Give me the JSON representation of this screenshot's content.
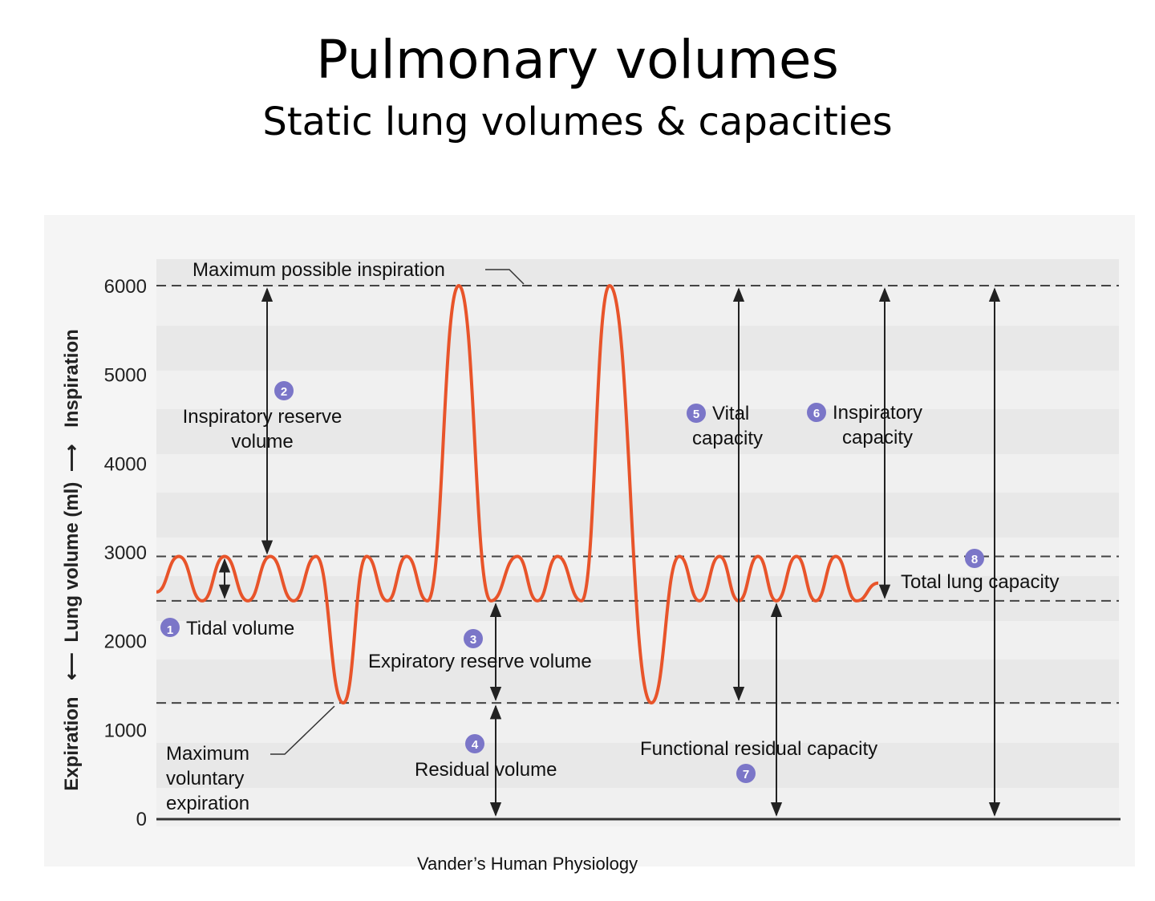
{
  "title": "Pulmonary volumes",
  "subtitle": "Static lung volumes & capacities",
  "source": "Vander’s Human Physiology",
  "accent_color": "#e8542a",
  "marker_color": "#7b76c8",
  "axis": {
    "y_label_parts": [
      "Expiration",
      "Lung volume (ml)",
      "Inspiration"
    ],
    "ticks": [
      "0",
      "1000",
      "2000",
      "3000",
      "4000",
      "5000",
      "6000"
    ]
  },
  "levels": {
    "max_inspiration": 6000,
    "tidal_top": 2950,
    "tidal_bottom": 2450,
    "max_expiration": 1300
  },
  "annotations": {
    "max_inspiration": "Maximum possible inspiration",
    "max_expiration": [
      "Maximum",
      "voluntary",
      "expiration"
    ]
  },
  "volumes": [
    {
      "num": "1",
      "lines": [
        "Tidal volume"
      ]
    },
    {
      "num": "2",
      "lines": [
        "Inspiratory reserve",
        "volume"
      ]
    },
    {
      "num": "3",
      "lines": [
        "Expiratory reserve volume"
      ]
    },
    {
      "num": "4",
      "lines": [
        "Residual volume"
      ]
    },
    {
      "num": "5",
      "lines": [
        "Vital",
        "capacity"
      ]
    },
    {
      "num": "6",
      "lines": [
        "Inspiratory",
        "capacity"
      ]
    },
    {
      "num": "7",
      "lines": [
        "Functional residual capacity"
      ]
    },
    {
      "num": "8",
      "lines": [
        "Total lung capacity"
      ]
    }
  ]
}
